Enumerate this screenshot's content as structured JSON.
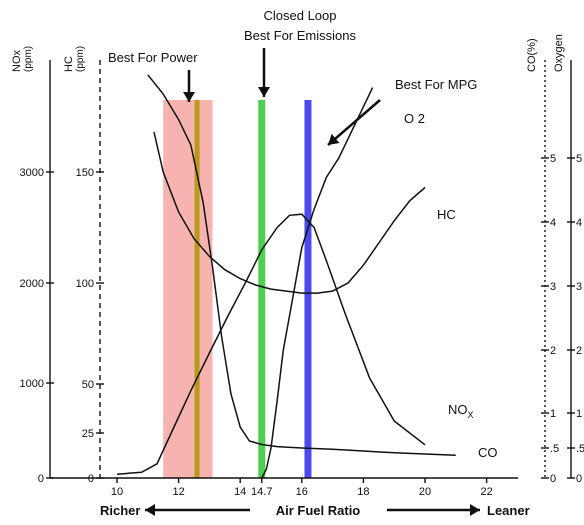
{
  "chart_data": {
    "type": "line",
    "xlabel": "Air Fuel Ratio",
    "x_left_label": "Richer",
    "x_right_label": "Leaner",
    "x_ticks": [
      "10",
      "12",
      "14",
      "14.7",
      "16",
      "18",
      "20",
      "22"
    ],
    "xlim": [
      10,
      23
    ],
    "axes": [
      {
        "name": "nox",
        "label": "NOx",
        "unit": "(ppm)",
        "ticks": [
          "0",
          "1000",
          "2000",
          "3000"
        ],
        "range": [
          0,
          3500
        ]
      },
      {
        "name": "hc",
        "label": "HC",
        "unit": "(ppm)",
        "ticks": [
          "0",
          "25",
          "50",
          "100",
          "150"
        ],
        "range": [
          0,
          175
        ]
      },
      {
        "name": "co",
        "label": "CO(%)",
        "unit": "",
        "ticks": [
          "0",
          ".5",
          "1",
          "2",
          "3",
          "4",
          "5"
        ],
        "range": [
          0,
          6
        ]
      },
      {
        "name": "o2",
        "label": "Oxygen",
        "unit": "",
        "ticks": [
          "0",
          ".5",
          "1",
          "2",
          "3",
          "4",
          "5"
        ],
        "range": [
          0,
          6
        ]
      }
    ],
    "bands": [
      {
        "label": "Best For Power",
        "x_range": [
          11.5,
          13.1
        ],
        "color": "#f4a6a2",
        "line_x": 12.6,
        "line_color": "#b79a1a"
      },
      {
        "label": "Closed Loop\nBest For Emissions",
        "x": 14.7,
        "color": "#4fcf4f"
      },
      {
        "label": "Best For MPG",
        "x": 16.2,
        "color": "#4a4af0"
      }
    ],
    "series": [
      {
        "name": "NOx",
        "axis": "nox",
        "x": [
          10,
          10.8,
          11.3,
          11.8,
          12.4,
          13.0,
          13.6,
          14.2,
          14.7,
          15.2,
          15.6,
          16.0,
          16.4,
          16.8,
          17.4,
          18.2,
          19.0,
          20.0
        ],
        "y": [
          40,
          60,
          150,
          500,
          920,
          1300,
          1670,
          2020,
          2300,
          2500,
          2610,
          2620,
          2500,
          2200,
          1700,
          1050,
          600,
          350
        ]
      },
      {
        "name": "HC",
        "axis": "hc",
        "x": [
          11.2,
          11.5,
          12.0,
          12.5,
          13.0,
          13.5,
          14.0,
          14.5,
          15.0,
          15.5,
          16.0,
          16.5,
          17.0,
          17.5,
          18.0,
          18.5,
          19.0,
          19.5,
          20.0
        ],
        "y": [
          168,
          150,
          132,
          120,
          112,
          106,
          102,
          99,
          97,
          96,
          95,
          95,
          96,
          100,
          108,
          118,
          128,
          137,
          143
        ]
      },
      {
        "name": "CO",
        "axis": "co",
        "x": [
          11.0,
          11.5,
          12.0,
          12.4,
          12.8,
          13.1,
          13.4,
          13.7,
          14.0,
          14.3,
          14.7,
          15.2,
          16.0,
          17.0,
          18.0,
          19.0,
          20.0,
          21.0
        ],
        "y": [
          6.3,
          6.0,
          5.6,
          5.2,
          4.3,
          3.3,
          2.2,
          1.3,
          0.8,
          0.6,
          0.55,
          0.52,
          0.5,
          0.48,
          0.45,
          0.42,
          0.4,
          0.38
        ]
      },
      {
        "name": "O 2",
        "axis": "o2",
        "x": [
          14.7,
          14.85,
          15.0,
          15.2,
          15.4,
          15.7,
          16.0,
          16.4,
          16.8,
          17.2,
          17.6,
          18.0,
          18.3
        ],
        "y": [
          0.0,
          0.15,
          0.5,
          1.2,
          2.0,
          2.8,
          3.6,
          4.2,
          4.7,
          5.0,
          5.4,
          5.8,
          6.1
        ]
      }
    ],
    "grid": false
  }
}
